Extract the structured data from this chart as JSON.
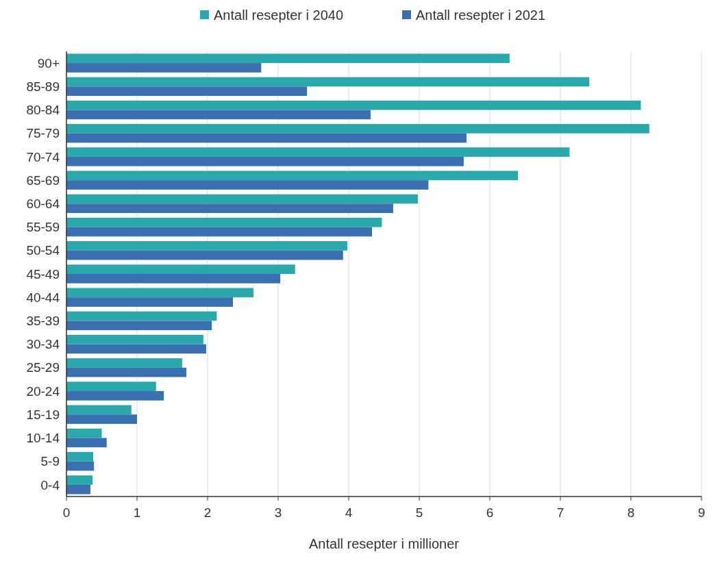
{
  "chart_data": {
    "type": "bar",
    "orientation": "horizontal",
    "xlabel": "Antall resepter i millioner",
    "categories": [
      "90+",
      "85-89",
      "80-84",
      "75-79",
      "70-74",
      "65-69",
      "60-64",
      "55-59",
      "50-54",
      "45-49",
      "40-44",
      "35-39",
      "30-34",
      "25-29",
      "20-24",
      "15-19",
      "10-14",
      "5-9",
      "0-4"
    ],
    "series": [
      {
        "name": "Antall resepter i 2040",
        "color": "#2aa8ab",
        "values": [
          6.28,
          7.41,
          8.14,
          8.26,
          7.13,
          6.4,
          4.98,
          4.47,
          3.98,
          3.24,
          2.65,
          2.13,
          1.94,
          1.64,
          1.27,
          0.92,
          0.5,
          0.38,
          0.37
        ]
      },
      {
        "name": "Antall resepter i 2021",
        "color": "#3a6fb0",
        "values": [
          2.76,
          3.41,
          4.31,
          5.67,
          5.63,
          5.13,
          4.63,
          4.33,
          3.92,
          3.03,
          2.36,
          2.06,
          1.98,
          1.7,
          1.38,
          1.0,
          0.57,
          0.39,
          0.34
        ]
      }
    ],
    "xlim": [
      0,
      9
    ],
    "xticks": [
      0,
      1,
      2,
      3,
      4,
      5,
      6,
      7,
      8,
      9
    ],
    "grid": "x",
    "legend": "top"
  }
}
